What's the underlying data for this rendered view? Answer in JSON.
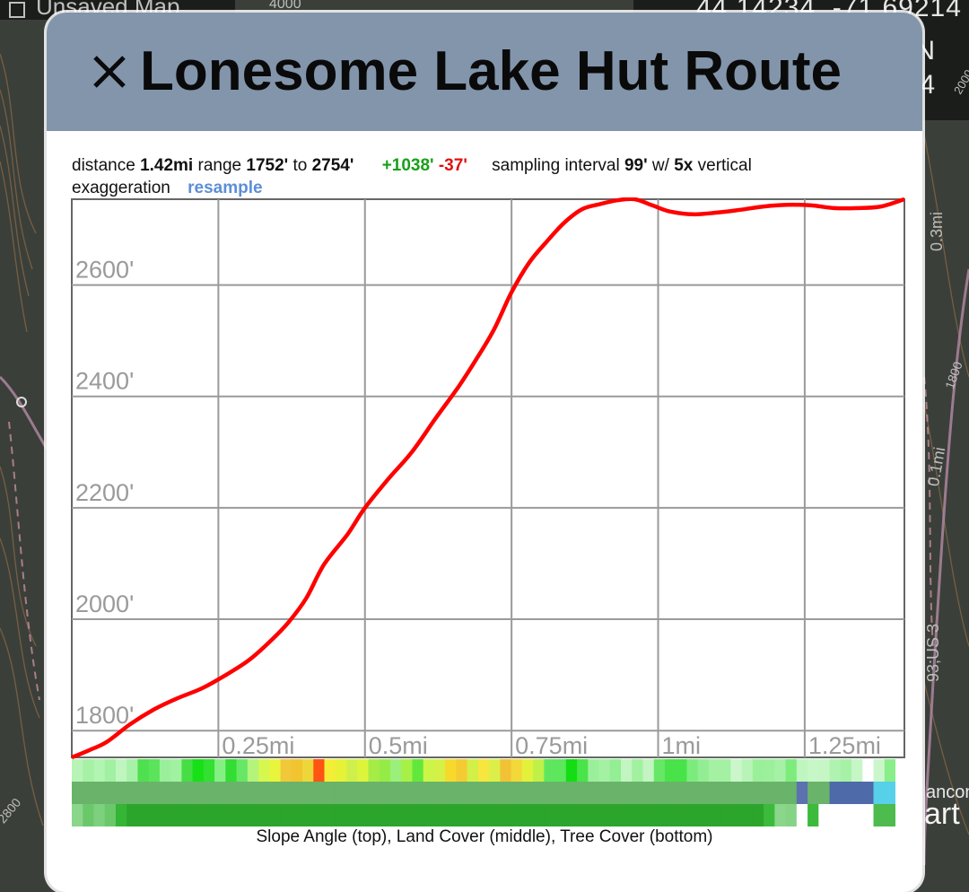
{
  "map": {
    "title": "Unsaved Map",
    "coords_line": "44.14234, -71.69214",
    "coords_n": "N",
    "coords_4": "4",
    "labels": [
      "4000",
      "0.3mi",
      "1800",
      "0.1mi",
      "93;US 3",
      "2000",
      "2800",
      "ancon",
      "art"
    ]
  },
  "dialog": {
    "title": "Lonesome Lake Hut Route",
    "close_label": "×"
  },
  "stats": {
    "distance_label": "distance",
    "distance_value": "1.42mi",
    "range_label": "range",
    "range_min": "1752'",
    "to_label": "to",
    "range_max": "2754'",
    "gain": "+1038'",
    "loss": "-37'",
    "interval_label": "sampling interval",
    "interval_value": "99'",
    "with_label": "w/",
    "exaggeration_value": "5x",
    "vertical_label": "vertical",
    "exaggeration_label": "exaggeration",
    "resample_label": "resample"
  },
  "chart_data": {
    "type": "line",
    "xlim": [
      0,
      1.42
    ],
    "ylim": [
      1752,
      2754
    ],
    "y_ticks": [
      1800,
      2000,
      2200,
      2400,
      2600
    ],
    "y_tick_labels": [
      "1800'",
      "2000'",
      "2200'",
      "2400'",
      "2600'"
    ],
    "x_ticks": [
      0.25,
      0.5,
      0.75,
      1.0,
      1.25
    ],
    "x_tick_labels": [
      "0.25mi",
      "0.5mi",
      "0.75mi",
      "1mi",
      "1.25mi"
    ],
    "grid": true,
    "series": [
      {
        "color": "#ff0000",
        "x": [
          0,
          0.03,
          0.06,
          0.1,
          0.14,
          0.18,
          0.22,
          0.25,
          0.3,
          0.34,
          0.37,
          0.4,
          0.43,
          0.47,
          0.5,
          0.54,
          0.58,
          0.62,
          0.66,
          0.69,
          0.72,
          0.75,
          0.78,
          0.81,
          0.84,
          0.87,
          0.9,
          0.93,
          0.96,
          0.99,
          1.02,
          1.06,
          1.1,
          1.14,
          1.18,
          1.22,
          1.26,
          1.3,
          1.34,
          1.38,
          1.42
        ],
        "y": [
          1752,
          1765,
          1780,
          1812,
          1838,
          1858,
          1875,
          1892,
          1925,
          1962,
          1995,
          2038,
          2098,
          2152,
          2200,
          2252,
          2300,
          2360,
          2418,
          2467,
          2520,
          2587,
          2640,
          2678,
          2712,
          2736,
          2745,
          2752,
          2754,
          2743,
          2732,
          2727,
          2730,
          2735,
          2741,
          2744,
          2743,
          2738,
          2738,
          2741,
          2754
        ]
      }
    ]
  },
  "strips": {
    "slope": [
      "#b8f3b8",
      "#a7f1a7",
      "#b2f4b2",
      "#a2f0a2",
      "#bff5bf",
      "#a8f1a8",
      "#4fe04f",
      "#5ce35c",
      "#9af09a",
      "#a0f2a0",
      "#45de45",
      "#17e017",
      "#32e032",
      "#84f084",
      "#33dd33",
      "#66e866",
      "#b3f47a",
      "#d6f74f",
      "#e9f43c",
      "#f0c83a",
      "#f2c430",
      "#edd63a",
      "#ff5414",
      "#f5ee37",
      "#e7f237",
      "#cff04b",
      "#dcf53b",
      "#a6ec46",
      "#96ec46",
      "#9af07b",
      "#a6f146",
      "#62e83a",
      "#ccf547",
      "#d5f047",
      "#f7d92c",
      "#f5cb34",
      "#d2f048",
      "#f6e63d",
      "#dcef48",
      "#f1c235",
      "#f2d839",
      "#e3f13b",
      "#bff148",
      "#5fe65f",
      "#5ce75c",
      "#14dd14",
      "#49e449",
      "#9af09a",
      "#a4f1a4",
      "#94ee94",
      "#c2f5c2",
      "#a1f1a1",
      "#c2f5c2",
      "#66e766",
      "#49e349",
      "#48e348",
      "#7bec7b",
      "#93ee93",
      "#a4f1a4",
      "#a4f1a4",
      "#cbf6cb",
      "#b8f3b8",
      "#9af09a",
      "#9cf09c",
      "#a7f1a7",
      "#7dec7d",
      "#bff5bf",
      "#c7f6c7",
      "#c6f6c6",
      "#b0f3b0",
      "#a7f1a7",
      "#c6f6c6",
      "#ffffff",
      "#cbf6cb",
      "#8aee8a"
    ],
    "land": [
      "#6ab36a",
      "#6ab36a",
      "#6ab36a",
      "#6ab36a",
      "#6ab36a",
      "#6ab36a",
      "#6ab36a",
      "#6ab36a",
      "#6ab36a",
      "#6ab36a",
      "#6ab36a",
      "#6ab36a",
      "#6ab36a",
      "#6ab36a",
      "#6ab36a",
      "#6ab36a",
      "#6ab36a",
      "#6ab36a",
      "#6ab36a",
      "#6ab36a",
      "#6ab36a",
      "#6ab36a",
      "#6ab36a",
      "#6ab36a",
      "#6ab36a",
      "#6ab36a",
      "#6ab36a",
      "#6ab36a",
      "#6ab36a",
      "#6ab36a",
      "#6ab36a",
      "#6ab36a",
      "#6ab36a",
      "#6ab36a",
      "#6ab36a",
      "#6ab36a",
      "#6ab36a",
      "#6ab36a",
      "#6ab36a",
      "#6ab36a",
      "#6ab36a",
      "#6ab36a",
      "#6ab36a",
      "#6ab36a",
      "#6ab36a",
      "#6ab36a",
      "#6ab36a",
      "#6ab36a",
      "#6ab36a",
      "#6ab36a",
      "#6ab36a",
      "#6ab36a",
      "#6ab36a",
      "#6ab36a",
      "#6ab36a",
      "#6ab36a",
      "#6ab36a",
      "#6ab36a",
      "#6ab36a",
      "#6ab36a",
      "#6ab36a",
      "#6ab36a",
      "#6ab36a",
      "#6ab36a",
      "#6ab36a",
      "#6ab36a",
      "#5b71b0",
      "#6ab36a",
      "#6ab36a",
      "#4e6aa9",
      "#4e6aa9",
      "#4e6aa9",
      "#4e6aa9",
      "#57d0ea",
      "#57d0ea"
    ],
    "tree": [
      "#8ad68a",
      "#6ac86a",
      "#7dd07d",
      "#6ac86a",
      "#35b535",
      "#2ca52c",
      "#2ca52c",
      "#2ca52c",
      "#2ca52c",
      "#2ca52c",
      "#2ca52c",
      "#2ca52c",
      "#2ca52c",
      "#2ca52c",
      "#2ca52c",
      "#2ca52c",
      "#2ca52c",
      "#2ca52c",
      "#2ca52c",
      "#2ca52c",
      "#2ca52c",
      "#2ca52c",
      "#2ca52c",
      "#2ca52c",
      "#2ca52c",
      "#2ca52c",
      "#2ca52c",
      "#2ca52c",
      "#2ca52c",
      "#2ca52c",
      "#2ca52c",
      "#2ca52c",
      "#2ca52c",
      "#2ca52c",
      "#2ca52c",
      "#2ca52c",
      "#2ca52c",
      "#2ca52c",
      "#2ca52c",
      "#2ca52c",
      "#2ca52c",
      "#2ca52c",
      "#2ca52c",
      "#2ca52c",
      "#2ca52c",
      "#2ca52c",
      "#2ca52c",
      "#2ca52c",
      "#2ca52c",
      "#2ca52c",
      "#2ca52c",
      "#2ca52c",
      "#2ca52c",
      "#2ca52c",
      "#2ca52c",
      "#2ca52c",
      "#2ca52c",
      "#2ca52c",
      "#2ca52c",
      "#2ca52c",
      "#2ca52c",
      "#2ca52c",
      "#2ca52c",
      "#3cba3c",
      "#8ad68a",
      "#86d386",
      "#ffffff",
      "#3cba3c",
      "#ffffff",
      "#ffffff",
      "#ffffff",
      "#ffffff",
      "#ffffff",
      "#4dbb4d",
      "#4dbb4d"
    ],
    "caption": "Slope Angle (top), Land Cover (middle), Tree Cover (bottom)"
  }
}
